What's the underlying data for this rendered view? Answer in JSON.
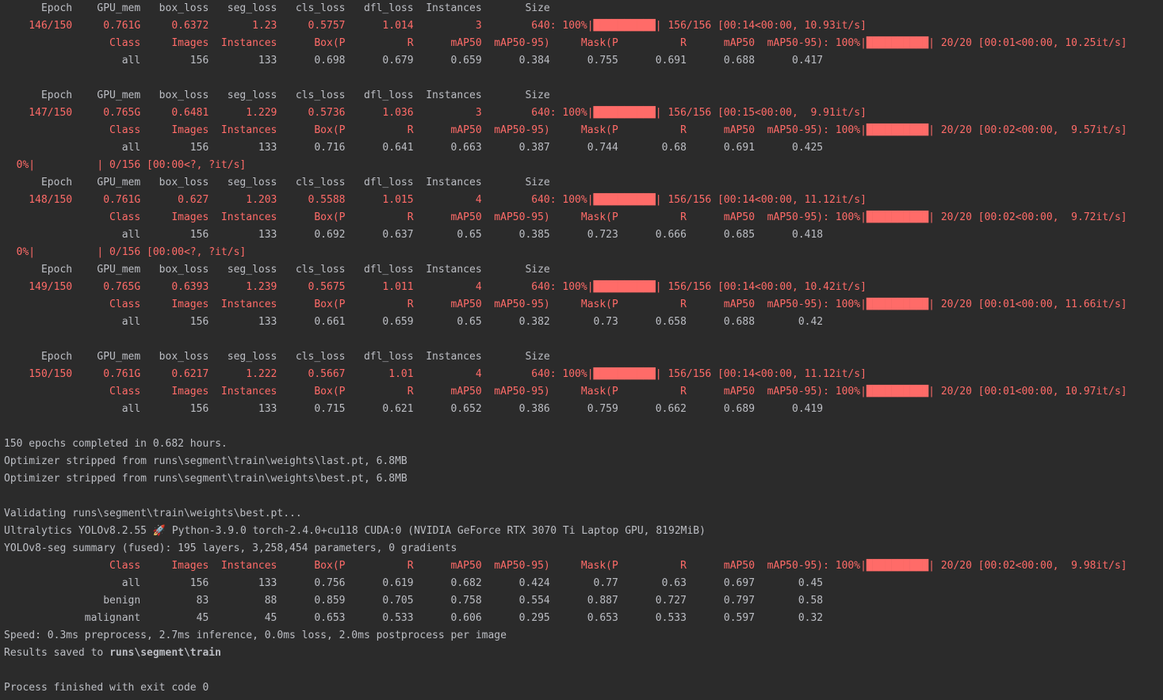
{
  "console": {
    "lines": [
      {
        "text": "      Epoch    GPU_mem   box_loss   seg_loss   cls_loss   dfl_loss  Instances       Size",
        "style": "white"
      },
      {
        "text": "    146/150     0.761G     0.6372       1.23     0.5757      1.014          3        640: 100%|██████████| 156/156 [00:14<00:00, 10.93it/s]",
        "style": "red"
      },
      {
        "text": "                 Class     Images  Instances      Box(P          R      mAP50  mAP50-95)     Mask(P          R      mAP50  mAP50-95): 100%|██████████| 20/20 [00:01<00:00, 10.25it/s]",
        "style": "red"
      },
      {
        "text": "                   all        156        133      0.698      0.679      0.659      0.384      0.755      0.691      0.688      0.417",
        "style": "white"
      },
      {
        "text": "",
        "style": "white"
      },
      {
        "text": "      Epoch    GPU_mem   box_loss   seg_loss   cls_loss   dfl_loss  Instances       Size",
        "style": "white"
      },
      {
        "text": "    147/150     0.765G     0.6481      1.229     0.5736      1.036          3        640: 100%|██████████| 156/156 [00:15<00:00,  9.91it/s]",
        "style": "red"
      },
      {
        "text": "                 Class     Images  Instances      Box(P          R      mAP50  mAP50-95)     Mask(P          R      mAP50  mAP50-95): 100%|██████████| 20/20 [00:02<00:00,  9.57it/s]",
        "style": "red"
      },
      {
        "text": "                   all        156        133      0.716      0.641      0.663      0.387      0.744       0.68      0.691      0.425",
        "style": "white"
      },
      {
        "text": "  0%|          | 0/156 [00:00<?, ?it/s]",
        "style": "red"
      },
      {
        "text": "      Epoch    GPU_mem   box_loss   seg_loss   cls_loss   dfl_loss  Instances       Size",
        "style": "white"
      },
      {
        "text": "    148/150     0.761G      0.627      1.203     0.5588      1.015          4        640: 100%|██████████| 156/156 [00:14<00:00, 11.12it/s]",
        "style": "red"
      },
      {
        "text": "                 Class     Images  Instances      Box(P          R      mAP50  mAP50-95)     Mask(P          R      mAP50  mAP50-95): 100%|██████████| 20/20 [00:02<00:00,  9.72it/s]",
        "style": "red"
      },
      {
        "text": "                   all        156        133      0.692      0.637       0.65      0.385      0.723      0.666      0.685      0.418",
        "style": "white"
      },
      {
        "text": "  0%|          | 0/156 [00:00<?, ?it/s]",
        "style": "red"
      },
      {
        "text": "      Epoch    GPU_mem   box_loss   seg_loss   cls_loss   dfl_loss  Instances       Size",
        "style": "white"
      },
      {
        "text": "    149/150     0.765G     0.6393      1.239     0.5675      1.011          4        640: 100%|██████████| 156/156 [00:14<00:00, 10.42it/s]",
        "style": "red"
      },
      {
        "text": "                 Class     Images  Instances      Box(P          R      mAP50  mAP50-95)     Mask(P          R      mAP50  mAP50-95): 100%|██████████| 20/20 [00:01<00:00, 11.66it/s]",
        "style": "red"
      },
      {
        "text": "                   all        156        133      0.661      0.659       0.65      0.382       0.73      0.658      0.688       0.42",
        "style": "white"
      },
      {
        "text": "",
        "style": "white"
      },
      {
        "text": "      Epoch    GPU_mem   box_loss   seg_loss   cls_loss   dfl_loss  Instances       Size",
        "style": "white"
      },
      {
        "text": "    150/150     0.761G     0.6217      1.222     0.5667       1.01          4        640: 100%|██████████| 156/156 [00:14<00:00, 11.12it/s]",
        "style": "red"
      },
      {
        "text": "                 Class     Images  Instances      Box(P          R      mAP50  mAP50-95)     Mask(P          R      mAP50  mAP50-95): 100%|██████████| 20/20 [00:01<00:00, 10.97it/s]",
        "style": "red"
      },
      {
        "text": "                   all        156        133      0.715      0.621      0.652      0.386      0.759      0.662      0.689      0.419",
        "style": "white"
      },
      {
        "text": "",
        "style": "white"
      },
      {
        "text": "150 epochs completed in 0.682 hours.",
        "style": "white"
      },
      {
        "text": "Optimizer stripped from runs\\segment\\train\\weights\\last.pt, 6.8MB",
        "style": "white"
      },
      {
        "text": "Optimizer stripped from runs\\segment\\train\\weights\\best.pt, 6.8MB",
        "style": "white"
      },
      {
        "text": "",
        "style": "white"
      },
      {
        "text": "Validating runs\\segment\\train\\weights\\best.pt...",
        "style": "white"
      },
      {
        "text": "Ultralytics YOLOv8.2.55 🚀 Python-3.9.0 torch-2.4.0+cu118 CUDA:0 (NVIDIA GeForce RTX 3070 Ti Laptop GPU, 8192MiB)",
        "style": "white"
      },
      {
        "text": "YOLOv8-seg summary (fused): 195 layers, 3,258,454 parameters, 0 gradients",
        "style": "white"
      },
      {
        "text": "                 Class     Images  Instances      Box(P          R      mAP50  mAP50-95)     Mask(P          R      mAP50  mAP50-95): 100%|██████████| 20/20 [00:02<00:00,  9.98it/s]",
        "style": "red"
      },
      {
        "text": "                   all        156        133      0.756      0.619      0.682      0.424       0.77       0.63      0.697       0.45",
        "style": "white"
      },
      {
        "text": "                benign         83         88      0.859      0.705      0.758      0.554      0.887      0.727      0.797       0.58",
        "style": "white"
      },
      {
        "text": "             malignant         45         45      0.653      0.533      0.606      0.295      0.653      0.533      0.597       0.32",
        "style": "white"
      },
      {
        "text": "Speed: 0.3ms preprocess, 2.7ms inference, 0.0ms loss, 2.0ms postprocess per image",
        "style": "white"
      },
      {
        "text": "Results saved to ",
        "style": "white",
        "bold_suffix": "runs\\segment\\train"
      },
      {
        "text": "",
        "style": "white"
      },
      {
        "text": "Process finished with exit code 0",
        "style": "white"
      }
    ]
  }
}
